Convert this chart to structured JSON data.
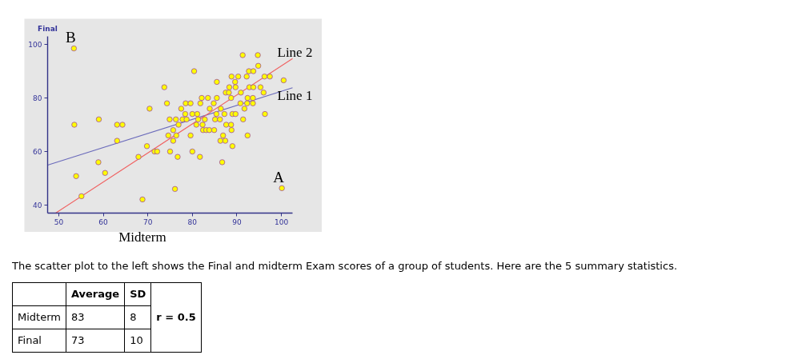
{
  "chart_data": {
    "type": "scatter",
    "xlabel": "Midterm",
    "ylabel": "Final",
    "xlim": [
      47.5,
      102.5
    ],
    "ylim": [
      37,
      103
    ],
    "xticks": [
      50,
      60,
      70,
      80,
      90,
      100
    ],
    "yticks": [
      40,
      60,
      80,
      100
    ],
    "series": [
      {
        "type": "line",
        "name": "Line 1",
        "color": "#6b6bbb",
        "line_style": "solid",
        "x": [
          47.5,
          102.5
        ],
        "values": [
          54.9,
          83.8
        ]
      },
      {
        "type": "line",
        "name": "Line 2",
        "color": "#f06060",
        "line_style": "solid",
        "x": [
          49.3,
          102.5
        ],
        "values": [
          37,
          94.7
        ]
      },
      {
        "color": "#ffff00",
        "marker": "circle",
        "x": [
          53.4,
          73.7,
          74.3,
          70.4,
          59.0,
          53.5,
          63.1,
          64.3,
          63.1,
          74.6,
          69.8,
          71.5,
          72.1,
          67.9,
          58.9,
          60.4,
          53.9,
          55.1,
          68.8,
          75.7,
          82.4,
          83.1,
          83.8,
          84.9,
          88.8,
          76.4,
          79.6,
          86.9,
          92.4,
          75.7,
          86.3,
          87.4,
          89.0,
          75.0,
          80.0,
          76.7,
          81.7,
          86.7,
          76.1,
          100.1,
          91.3,
          94.7,
          94.8,
          80.4,
          92.7,
          93.7,
          88.8,
          90.3,
          92.2,
          96.2,
          97.4,
          100.5,
          85.5,
          89.6,
          88.3,
          89.7,
          92.8,
          93.7,
          95.3,
          87.5,
          88.2,
          90.9,
          96.0,
          82.1,
          83.5,
          85.5,
          88.7,
          92.4,
          93.6,
          78.5,
          79.6,
          81.8,
          84.8,
          90.8,
          92.3,
          93.6,
          77.5,
          83.9,
          86.4,
          91.7,
          78.4,
          80.0,
          81.1,
          85.4,
          87.2,
          89.0,
          89.7,
          96.3,
          74.9,
          76.3,
          77.8,
          78.7,
          81.3,
          82.8,
          85.1,
          86.2,
          91.4,
          76.9,
          80.9,
          82.3,
          87.6,
          88.7
        ],
        "values": [
          98.5,
          84,
          78,
          76,
          72,
          70,
          70,
          70,
          64,
          66,
          62,
          60,
          60,
          58,
          56,
          52,
          50.8,
          43.3,
          42.1,
          68,
          68,
          68,
          68,
          68,
          68,
          66,
          66,
          66,
          66,
          64,
          64,
          64,
          62,
          60,
          60,
          58,
          58,
          56,
          46,
          46.3,
          96,
          96,
          92,
          90,
          90,
          90,
          88,
          88,
          88,
          88,
          88,
          86.6,
          86,
          86,
          84,
          84,
          84,
          84,
          84,
          82,
          82,
          82,
          82,
          80,
          80,
          80,
          80,
          80,
          80,
          78,
          78,
          78,
          78,
          78,
          78,
          78,
          76,
          76,
          76,
          76,
          74,
          74,
          74,
          74,
          74,
          74,
          74,
          74,
          72,
          72,
          72,
          72,
          72,
          72,
          72,
          72,
          72,
          70,
          70,
          70,
          70,
          70
        ]
      }
    ],
    "annotations": [
      {
        "text": "A",
        "x": 100.1,
        "y": 46.3
      },
      {
        "text": "B",
        "x": 53.4,
        "y": 98.5
      },
      "The scatter plot to the left shows the Final and midterm Exam scores of a group of students. Here are the 5 summary statistics.",
      "Average",
      "SD",
      "Midterm",
      "83",
      "8",
      "r = 0.5",
      "Final",
      "73",
      "10"
    ]
  }
}
